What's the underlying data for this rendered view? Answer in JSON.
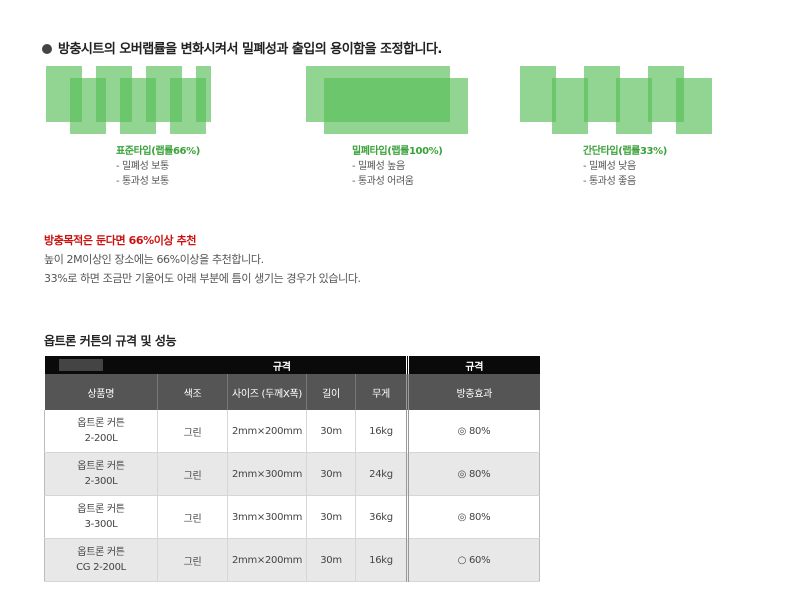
{
  "heading": "방충시트의 오버랩률을 변화시켜서 밀폐성과 출입의 용이함을 조정합니다.",
  "types": [
    {
      "title": "표준타입(랩률66%)",
      "lines": [
        "- 밀폐성 보통",
        "- 통과성 보통"
      ]
    },
    {
      "title": "밀폐타입(랩률100%)",
      "lines": [
        "- 밀폐성 높음",
        "- 통과성 어려움"
      ]
    },
    {
      "title": "간단타입(랩률33%)",
      "lines": [
        "- 밀폐성 낮음",
        "- 통과성 좋음"
      ]
    }
  ],
  "recommendation": {
    "title": "방충목적은 둔다면 66%이상 추천",
    "lines": [
      "높이 2M이상인 장소에는 66%이상을 추천합니다.",
      "33%로 하면 조금만 기울어도 아래 부분에 틈이 생기는 경우가 있습니다."
    ]
  },
  "spec": {
    "title": "옵트론 커튼의 규격 및 성능",
    "group_headers": [
      "규격",
      "규격"
    ],
    "columns": [
      "상품명",
      "색조",
      "사이즈 (두께X폭)",
      "길이",
      "무게",
      "방충효과"
    ],
    "rows": [
      {
        "name1": "옵트론 커튼",
        "name2": "2-200L",
        "color": "그린",
        "size": "2mm×200mm",
        "length": "30m",
        "weight": "16kg",
        "effect": "◎ 80%"
      },
      {
        "name1": "옵트론 커튼",
        "name2": "2-300L",
        "color": "그린",
        "size": "2mm×300mm",
        "length": "30m",
        "weight": "24kg",
        "effect": "◎ 80%"
      },
      {
        "name1": "옵트론 커튼",
        "name2": "3-300L",
        "color": "그린",
        "size": "3mm×300mm",
        "length": "30m",
        "weight": "36kg",
        "effect": "◎ 80%"
      },
      {
        "name1": "옵트론 커튼",
        "name2": "CG 2-200L",
        "color": "그린",
        "size": "2mm×200mm",
        "length": "30m",
        "weight": "16kg",
        "effect": "○ 60%"
      }
    ]
  }
}
